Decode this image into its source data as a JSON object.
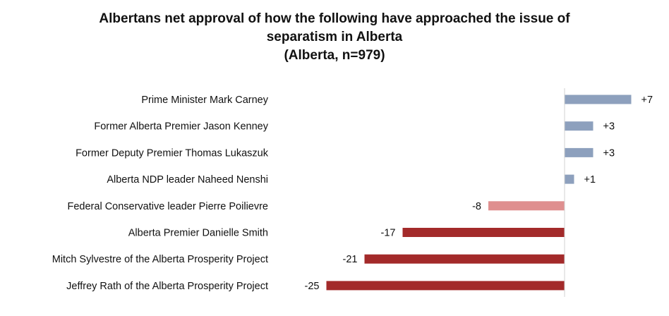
{
  "chart_data": {
    "type": "bar",
    "orientation": "horizontal",
    "title_lines": [
      "Albertans net approval of how the following have approached the issue of",
      "separatism in Alberta",
      "(Alberta, n=979)"
    ],
    "categories": [
      "Prime Minister Mark Carney",
      "Former Alberta Premier Jason Kenney",
      "Former Deputy Premier Thomas Lukaszuk",
      "Alberta NDP leader Naheed Nenshi",
      "Federal Conservative leader Pierre Poilievre",
      "Alberta Premier Danielle Smith",
      "Mitch Sylvestre of the Alberta Prosperity Project",
      "Jeffrey Rath of the Alberta Prosperity Project"
    ],
    "values": [
      7,
      3,
      3,
      1,
      -8,
      -17,
      -21,
      -25
    ],
    "value_labels": [
      "+7",
      "+3",
      "+3",
      "+1",
      "-8",
      "-17",
      "-21",
      "-25"
    ],
    "colors": {
      "positive": "#8da0bd",
      "mild_negative": "#df8f8f",
      "negative": "#a32a2a",
      "axis": "#d0d0d0"
    },
    "xlim": [
      -25,
      7
    ],
    "grid": false,
    "legend": "none"
  }
}
